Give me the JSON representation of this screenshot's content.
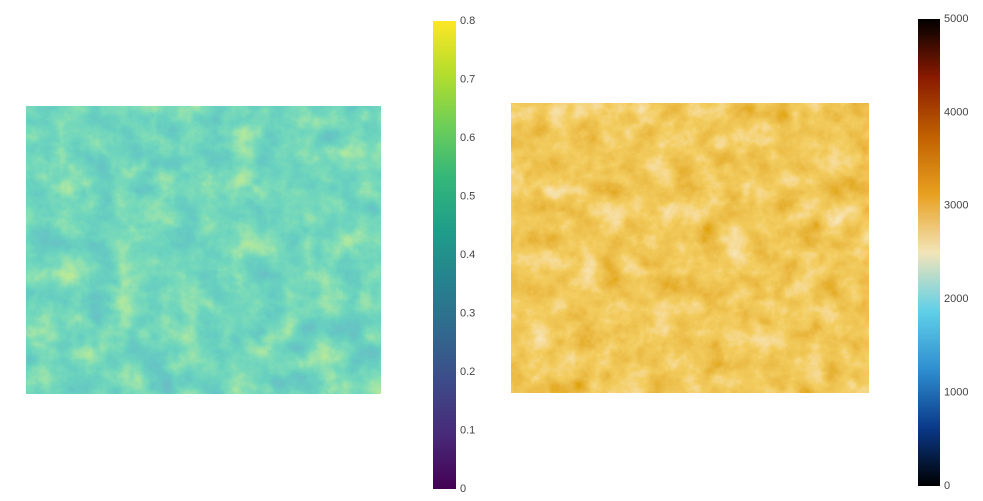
{
  "chart_data": [
    {
      "type": "heatmap",
      "colorscale": [
        "#440154",
        "#482878",
        "#3e4989",
        "#31688e",
        "#26828e",
        "#1f9e89",
        "#35b779",
        "#6ece58",
        "#b5de2b",
        "#fde725"
      ],
      "zlim": [
        0,
        0.8
      ],
      "zticks": [
        0,
        0.1,
        0.2,
        0.3,
        0.4,
        0.5,
        0.6,
        0.7,
        0.8
      ]
    },
    {
      "type": "heatmap",
      "colorscale": [
        "#000000",
        "#0a3a8a",
        "#2f8fd0",
        "#60d0e8",
        "#f2e4b8",
        "#e8a020",
        "#c06000",
        "#8a1a00",
        "#000000"
      ],
      "zlim": [
        0,
        5000
      ],
      "zticks": [
        0,
        1000,
        2000,
        3000,
        4000,
        5000
      ]
    }
  ]
}
